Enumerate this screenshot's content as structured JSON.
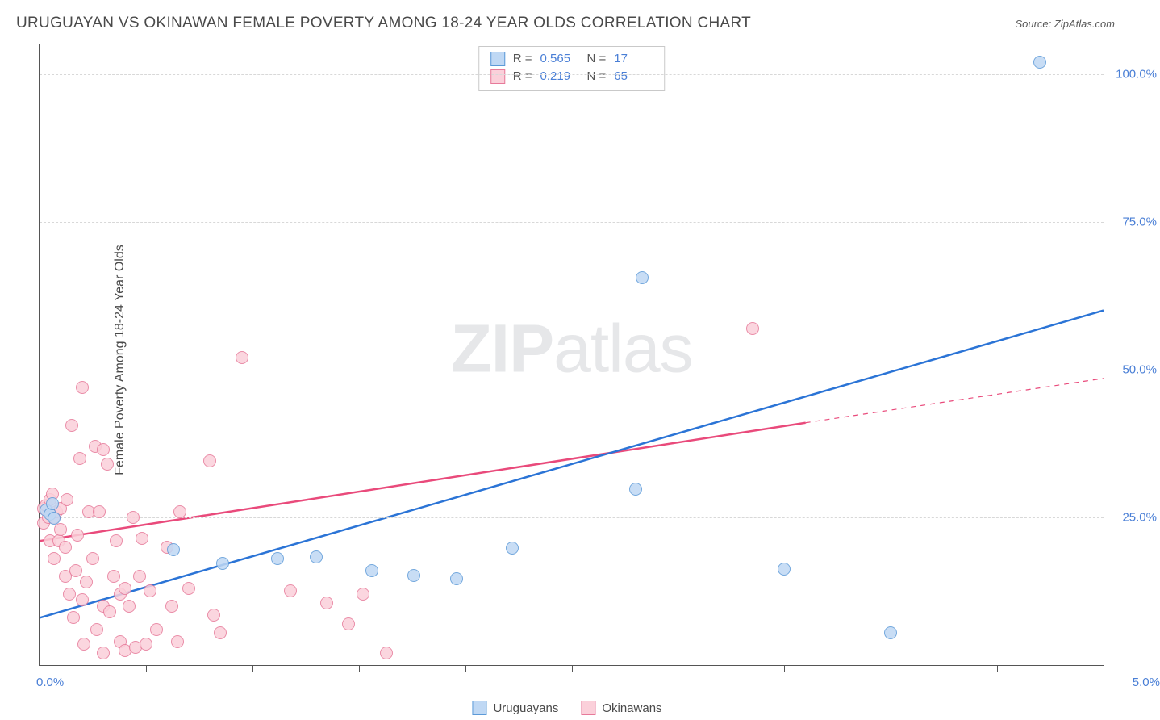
{
  "title": "URUGUAYAN VS OKINAWAN FEMALE POVERTY AMONG 18-24 YEAR OLDS CORRELATION CHART",
  "source_label": "Source: ZipAtlas.com",
  "ylabel": "Female Poverty Among 18-24 Year Olds",
  "watermark_part1": "ZIP",
  "watermark_part2": "atlas",
  "chart": {
    "type": "scatter",
    "xlim": [
      0,
      5.0
    ],
    "ylim": [
      0,
      105
    ],
    "x_ticks": [
      0,
      0.5,
      1.0,
      1.5,
      2.0,
      2.5,
      3.0,
      3.5,
      4.0,
      4.5,
      5.0
    ],
    "x_tick_labels_shown": {
      "0": "0.0%",
      "5.0": "5.0%"
    },
    "y_gridlines": [
      25,
      50,
      75,
      100
    ],
    "y_tick_labels": {
      "25": "25.0%",
      "50": "50.0%",
      "75": "75.0%",
      "100": "100.0%"
    },
    "background_color": "#ffffff",
    "grid_color": "#d8d8d8",
    "axis_color": "#555555",
    "marker_radius": 8,
    "marker_stroke_width": 1.5,
    "trendline_width": 2.5,
    "series": [
      {
        "name": "Uruguayans",
        "fill_color": "#bfd8f4",
        "stroke_color": "#5c9ad8",
        "line_color": "#2b74d6",
        "R": "0.565",
        "N": "17",
        "points": [
          [
            0.03,
            26.2
          ],
          [
            0.05,
            25.5
          ],
          [
            0.06,
            27.3
          ],
          [
            0.07,
            24.8
          ],
          [
            0.63,
            19.5
          ],
          [
            0.86,
            17.2
          ],
          [
            1.12,
            18.0
          ],
          [
            1.3,
            18.3
          ],
          [
            1.56,
            16.0
          ],
          [
            1.76,
            15.2
          ],
          [
            1.96,
            14.6
          ],
          [
            2.22,
            19.8
          ],
          [
            2.8,
            29.8
          ],
          [
            2.83,
            65.5
          ],
          [
            3.5,
            16.2
          ],
          [
            4.0,
            5.5
          ],
          [
            4.7,
            102.0
          ]
        ],
        "trendline": {
          "x1": 0.0,
          "y1": 8.0,
          "x2": 5.0,
          "y2": 60.0
        }
      },
      {
        "name": "Okinawans",
        "fill_color": "#fbd0da",
        "stroke_color": "#e77a9a",
        "line_color": "#e94a7b",
        "R": "0.219",
        "N": "65",
        "points": [
          [
            0.02,
            26.5
          ],
          [
            0.02,
            24.0
          ],
          [
            0.03,
            27.0
          ],
          [
            0.04,
            25.0
          ],
          [
            0.05,
            21.0
          ],
          [
            0.05,
            28.0
          ],
          [
            0.06,
            29.0
          ],
          [
            0.07,
            25.0
          ],
          [
            0.07,
            18.0
          ],
          [
            0.08,
            26.0
          ],
          [
            0.09,
            21.0
          ],
          [
            0.1,
            23.0
          ],
          [
            0.1,
            26.5
          ],
          [
            0.12,
            20.0
          ],
          [
            0.12,
            15.0
          ],
          [
            0.13,
            28.0
          ],
          [
            0.14,
            12.0
          ],
          [
            0.15,
            40.5
          ],
          [
            0.16,
            8.0
          ],
          [
            0.17,
            16.0
          ],
          [
            0.18,
            22.0
          ],
          [
            0.19,
            35.0
          ],
          [
            0.2,
            11.0
          ],
          [
            0.2,
            47.0
          ],
          [
            0.21,
            3.5
          ],
          [
            0.22,
            14.0
          ],
          [
            0.23,
            26.0
          ],
          [
            0.25,
            18.0
          ],
          [
            0.26,
            37.0
          ],
          [
            0.27,
            6.0
          ],
          [
            0.28,
            26.0
          ],
          [
            0.3,
            10.0
          ],
          [
            0.3,
            36.5
          ],
          [
            0.3,
            2.0
          ],
          [
            0.32,
            34.0
          ],
          [
            0.33,
            9.0
          ],
          [
            0.35,
            15.0
          ],
          [
            0.36,
            21.0
          ],
          [
            0.38,
            12.0
          ],
          [
            0.38,
            4.0
          ],
          [
            0.4,
            2.5
          ],
          [
            0.4,
            13.0
          ],
          [
            0.42,
            10.0
          ],
          [
            0.44,
            25.0
          ],
          [
            0.45,
            3.0
          ],
          [
            0.47,
            15.0
          ],
          [
            0.48,
            21.5
          ],
          [
            0.5,
            3.5
          ],
          [
            0.52,
            12.5
          ],
          [
            0.55,
            6.0
          ],
          [
            0.6,
            20.0
          ],
          [
            0.62,
            10.0
          ],
          [
            0.65,
            4.0
          ],
          [
            0.66,
            26.0
          ],
          [
            0.7,
            13.0
          ],
          [
            0.8,
            34.5
          ],
          [
            0.82,
            8.5
          ],
          [
            0.85,
            5.5
          ],
          [
            0.95,
            52.0
          ],
          [
            1.18,
            12.5
          ],
          [
            1.35,
            10.5
          ],
          [
            1.45,
            7.0
          ],
          [
            1.52,
            12.0
          ],
          [
            1.63,
            2.0
          ],
          [
            3.35,
            57.0
          ]
        ],
        "trendline": {
          "x1": 0.0,
          "y1": 21.0,
          "x2": 3.6,
          "y2": 41.0
        },
        "trendline_ext": {
          "x1": 3.6,
          "y1": 41.0,
          "x2": 5.0,
          "y2": 48.5
        }
      }
    ],
    "legend_bottom": [
      "Uruguayans",
      "Okinawans"
    ]
  },
  "label_fontsize": 16,
  "title_fontsize": 19,
  "tick_fontsize": 15
}
